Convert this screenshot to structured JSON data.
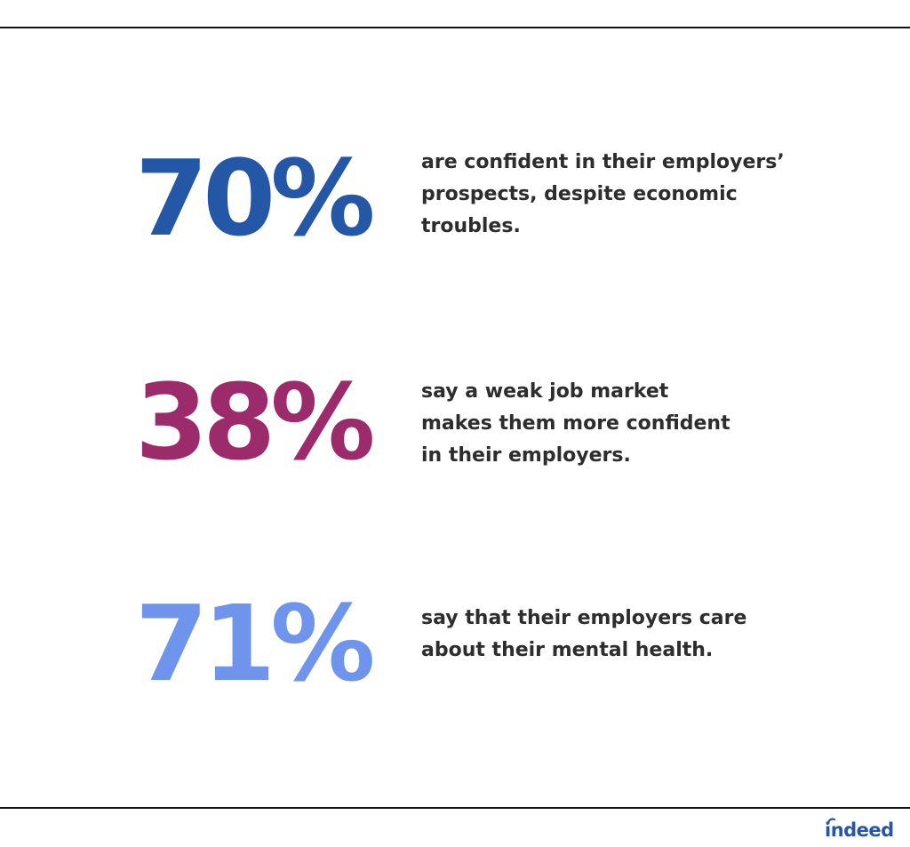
{
  "stats": [
    {
      "value": "70%",
      "color": "#2557a7",
      "lines": [
        "are confident in their employers’",
        "prospects, despite economic",
        "troubles."
      ]
    },
    {
      "value": "38%",
      "color": "#9b2b6a",
      "lines": [
        "say a weak job market",
        "makes them more confident",
        "in their employers."
      ]
    },
    {
      "value": "71%",
      "color": "#6e95eb",
      "lines": [
        "say that their employers care",
        "about their mental health."
      ]
    }
  ],
  "logo": {
    "text": "indeed",
    "color": "#2557a7"
  }
}
